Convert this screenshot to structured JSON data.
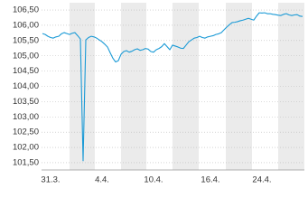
{
  "chart_data": {
    "type": "line",
    "categories": [
      null,
      null,
      null,
      "31.3.",
      null,
      null,
      null,
      null,
      null,
      null,
      null,
      null,
      null,
      null,
      null,
      null,
      null,
      null,
      null,
      null,
      null,
      null,
      "4.4.",
      null,
      null,
      null,
      null,
      null,
      null,
      null,
      null,
      null,
      null,
      null,
      null,
      null,
      null,
      null,
      null,
      null,
      null,
      "10.4.",
      null,
      null,
      null,
      null,
      null,
      null,
      null,
      null,
      null,
      null,
      null,
      null,
      null,
      null,
      null,
      null,
      null,
      null,
      null,
      null,
      "16.4.",
      null,
      null,
      null,
      null,
      null,
      null,
      null,
      null,
      null,
      null,
      null,
      null,
      null,
      null,
      null,
      null,
      null,
      null,
      "24.4.",
      null,
      null,
      null,
      null,
      null,
      null,
      null,
      null,
      null,
      null,
      null,
      null,
      null,
      null,
      null
    ],
    "series": [
      {
        "color": "#1a9ad6",
        "values": [
          105.73,
          105.7,
          105.64,
          105.6,
          105.58,
          105.62,
          105.64,
          105.72,
          105.76,
          105.73,
          105.7,
          105.74,
          105.76,
          105.66,
          105.55,
          101.56,
          105.52,
          105.6,
          105.64,
          105.62,
          105.58,
          105.52,
          105.46,
          105.38,
          105.29,
          105.1,
          104.92,
          104.8,
          104.84,
          105.05,
          105.14,
          105.17,
          105.12,
          105.15,
          105.2,
          105.23,
          105.18,
          105.2,
          105.24,
          105.22,
          105.14,
          105.12,
          105.2,
          105.24,
          105.3,
          105.4,
          105.3,
          105.2,
          105.35,
          105.32,
          105.29,
          105.25,
          105.24,
          105.35,
          105.46,
          105.52,
          105.58,
          105.6,
          105.64,
          105.6,
          105.58,
          105.62,
          105.64,
          105.66,
          105.7,
          105.72,
          105.76,
          105.85,
          105.94,
          106.02,
          106.09,
          106.1,
          106.12,
          106.15,
          106.17,
          106.2,
          106.23,
          106.2,
          106.17,
          106.3,
          106.41,
          106.4,
          106.41,
          106.38,
          106.38,
          106.36,
          106.35,
          106.33,
          106.32,
          106.36,
          106.38,
          106.34,
          106.32,
          106.34,
          106.35,
          106.3,
          106.29
        ]
      }
    ],
    "ylim": [
      101.26,
      106.74
    ],
    "yticks": [
      {
        "value": 101.5,
        "label": "101,50"
      },
      {
        "value": 102,
        "label": "102,00"
      },
      {
        "value": 102.5,
        "label": "102,50"
      },
      {
        "value": 103,
        "label": "103,00"
      },
      {
        "value": 103.5,
        "label": "103,50"
      },
      {
        "value": 104,
        "label": "104,00"
      },
      {
        "value": 104.5,
        "label": "104,50"
      },
      {
        "value": 105,
        "label": "105,00"
      },
      {
        "value": 105.5,
        "label": "105,50"
      },
      {
        "value": 106,
        "label": "106,00"
      },
      {
        "value": 106.5,
        "label": "106,50"
      }
    ],
    "grid": true
  }
}
